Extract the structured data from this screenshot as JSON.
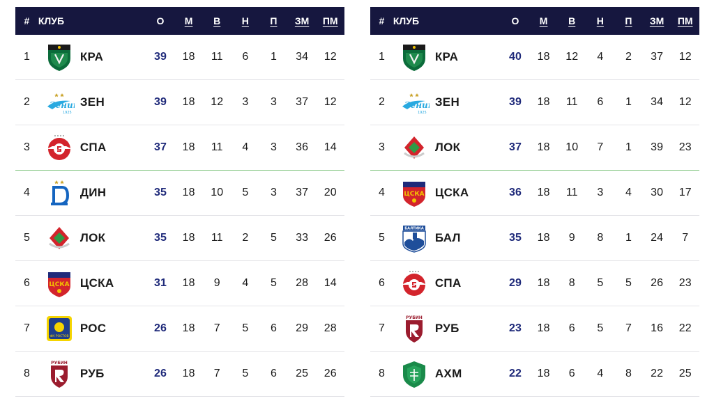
{
  "header": {
    "rank": "#",
    "club": "КЛУБ",
    "points": "О",
    "played": "М",
    "won": "В",
    "drawn": "Н",
    "lost": "П",
    "goals_for": "ЗМ",
    "goals_against": "ПМ"
  },
  "left_table": {
    "rows": [
      {
        "rank": "1",
        "club": "КРА",
        "logo": "krasnodar-logo",
        "points": "39",
        "played": "18",
        "won": "11",
        "drawn": "6",
        "lost": "1",
        "gf": "34",
        "ga": "12"
      },
      {
        "rank": "2",
        "club": "ЗЕН",
        "logo": "zenit-logo",
        "points": "39",
        "played": "18",
        "won": "12",
        "drawn": "3",
        "lost": "3",
        "gf": "37",
        "ga": "12"
      },
      {
        "rank": "3",
        "club": "СПА",
        "logo": "spartak-logo",
        "points": "37",
        "played": "18",
        "won": "11",
        "drawn": "4",
        "lost": "3",
        "gf": "36",
        "ga": "14"
      },
      {
        "rank": "4",
        "club": "ДИН",
        "logo": "dynamo-logo",
        "points": "35",
        "played": "18",
        "won": "10",
        "drawn": "5",
        "lost": "3",
        "gf": "37",
        "ga": "20"
      },
      {
        "rank": "5",
        "club": "ЛОК",
        "logo": "lokomotiv-logo",
        "points": "35",
        "played": "18",
        "won": "11",
        "drawn": "2",
        "lost": "5",
        "gf": "33",
        "ga": "26"
      },
      {
        "rank": "6",
        "club": "ЦСКА",
        "logo": "cska-logo",
        "points": "31",
        "played": "18",
        "won": "9",
        "drawn": "4",
        "lost": "5",
        "gf": "28",
        "ga": "14"
      },
      {
        "rank": "7",
        "club": "РОС",
        "logo": "rostov-logo",
        "points": "26",
        "played": "18",
        "won": "7",
        "drawn": "5",
        "lost": "6",
        "gf": "29",
        "ga": "28"
      },
      {
        "rank": "8",
        "club": "РУБ",
        "logo": "rubin-logo",
        "points": "26",
        "played": "18",
        "won": "7",
        "drawn": "5",
        "lost": "6",
        "gf": "25",
        "ga": "26"
      }
    ]
  },
  "right_table": {
    "rows": [
      {
        "rank": "1",
        "club": "КРА",
        "logo": "krasnodar-logo",
        "points": "40",
        "played": "18",
        "won": "12",
        "drawn": "4",
        "lost": "2",
        "gf": "37",
        "ga": "12"
      },
      {
        "rank": "2",
        "club": "ЗЕН",
        "logo": "zenit-logo",
        "points": "39",
        "played": "18",
        "won": "11",
        "drawn": "6",
        "lost": "1",
        "gf": "34",
        "ga": "12"
      },
      {
        "rank": "3",
        "club": "ЛОК",
        "logo": "lokomotiv-logo",
        "points": "37",
        "played": "18",
        "won": "10",
        "drawn": "7",
        "lost": "1",
        "gf": "39",
        "ga": "23"
      },
      {
        "rank": "4",
        "club": "ЦСКА",
        "logo": "cska-logo",
        "points": "36",
        "played": "18",
        "won": "11",
        "drawn": "3",
        "lost": "4",
        "gf": "30",
        "ga": "17"
      },
      {
        "rank": "5",
        "club": "БАЛ",
        "logo": "baltika-logo",
        "points": "35",
        "played": "18",
        "won": "9",
        "drawn": "8",
        "lost": "1",
        "gf": "24",
        "ga": "7"
      },
      {
        "rank": "6",
        "club": "СПА",
        "logo": "spartak-logo",
        "points": "29",
        "played": "18",
        "won": "8",
        "drawn": "5",
        "lost": "5",
        "gf": "26",
        "ga": "23"
      },
      {
        "rank": "7",
        "club": "РУБ",
        "logo": "rubin-logo",
        "points": "23",
        "played": "18",
        "won": "6",
        "drawn": "5",
        "lost": "7",
        "gf": "16",
        "ga": "22"
      },
      {
        "rank": "8",
        "club": "АХМ",
        "logo": "akhmat-logo",
        "points": "22",
        "played": "18",
        "won": "6",
        "drawn": "4",
        "lost": "8",
        "gf": "22",
        "ga": "25"
      }
    ]
  },
  "colors": {
    "header_bg": "#16173f",
    "points_text": "#1f2a7a",
    "zone_line": "#7cc27a",
    "row_divider": "#e4e4e8"
  },
  "logo_text": {
    "zenit_year": "1925",
    "baltika_banner": "БАЛТИКА",
    "rubin_banner": "РУБИН",
    "cska_text": "ЦСКА",
    "rostov_text": "ФК РОСТОВ"
  }
}
